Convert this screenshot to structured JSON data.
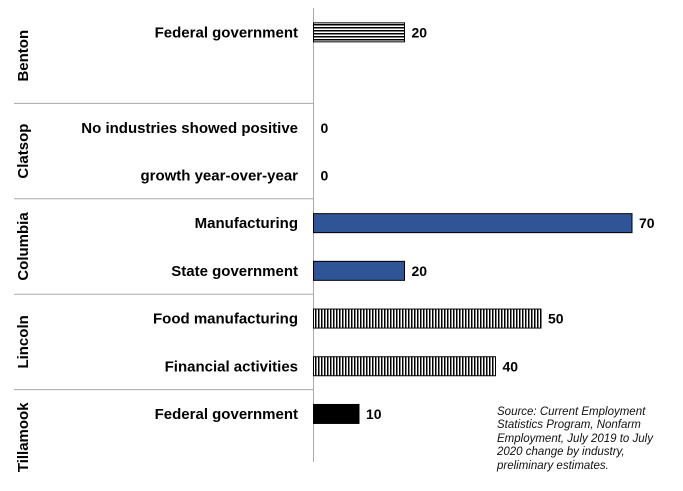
{
  "chart_data": {
    "type": "bar",
    "orientation": "horizontal",
    "groups": [
      {
        "name": "Benton",
        "rows": [
          {
            "label": "Federal government",
            "value": 20,
            "fill": "hlines"
          }
        ]
      },
      {
        "name": "Clatsop",
        "rows": [
          {
            "label": "No industries showed positive",
            "value": 0,
            "fill": "none"
          },
          {
            "label": "growth year-over-year",
            "value": 0,
            "fill": "none"
          }
        ]
      },
      {
        "name": "Columbia",
        "rows": [
          {
            "label": "Manufacturing",
            "value": 70,
            "fill": "solid-blue"
          },
          {
            "label": "State government",
            "value": 20,
            "fill": "solid-blue"
          }
        ]
      },
      {
        "name": "Lincoln",
        "rows": [
          {
            "label": "Food manufacturing",
            "value": 50,
            "fill": "vlines"
          },
          {
            "label": "Financial activities",
            "value": 40,
            "fill": "vlines"
          }
        ]
      },
      {
        "name": "Tillamook",
        "rows": [
          {
            "label": "Federal government",
            "value": 10,
            "fill": "solid-black"
          }
        ]
      }
    ],
    "xlim": [
      0,
      70
    ],
    "grid": false,
    "legend": "none",
    "colors": {
      "blue": "#2f5597",
      "black": "#000000",
      "divider": "#aaaaaa"
    },
    "source": "Source: Current Employment Statistics Program, Nonfarm Employment, July 2019 to July 2020 change by industry, preliminary estimates."
  }
}
